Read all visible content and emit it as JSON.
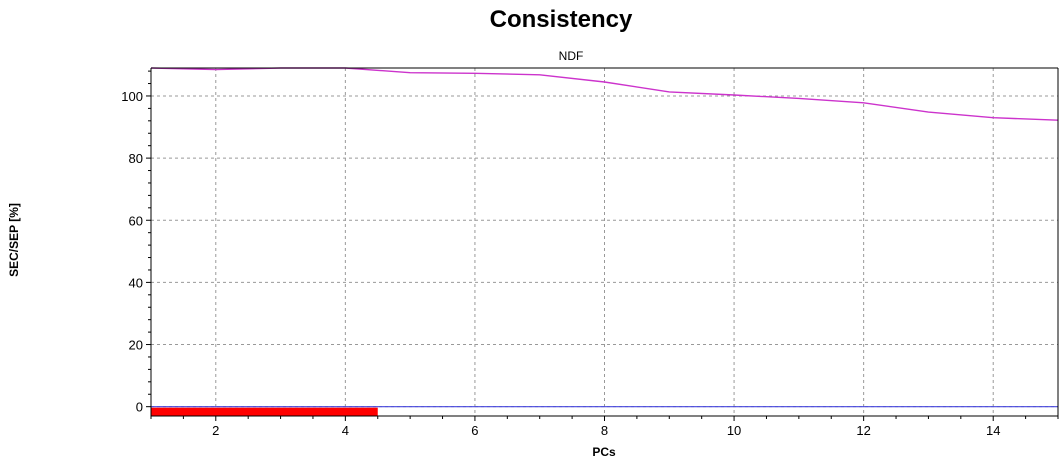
{
  "chart_data": {
    "type": "line",
    "title": "Consistency",
    "subtitle": "NDF",
    "xlabel": "PCs",
    "ylabel": "SEC/SEP [%]",
    "xlim": [
      1,
      15
    ],
    "ylim": [
      -3,
      109
    ],
    "x_ticks": [
      2,
      4,
      6,
      8,
      10,
      12,
      14
    ],
    "y_ticks": [
      0,
      20,
      40,
      60,
      80,
      100
    ],
    "grid": true,
    "legend": "none",
    "series": [
      {
        "color": "#cc33cc",
        "x": [
          1,
          2,
          3,
          4,
          5,
          6,
          7,
          8,
          9,
          10,
          11,
          12,
          13,
          14,
          15
        ],
        "values": [
          109,
          108.5,
          109,
          109,
          107.5,
          107.3,
          106.8,
          104.5,
          101.3,
          100.3,
          99.2,
          97.8,
          94.8,
          93,
          92.2
        ]
      }
    ],
    "reference_line": {
      "value": 0,
      "color": "#4444dd"
    },
    "highlight_bar": {
      "x_start": 1,
      "x_end": 4.5,
      "color": "#ff0000"
    }
  }
}
